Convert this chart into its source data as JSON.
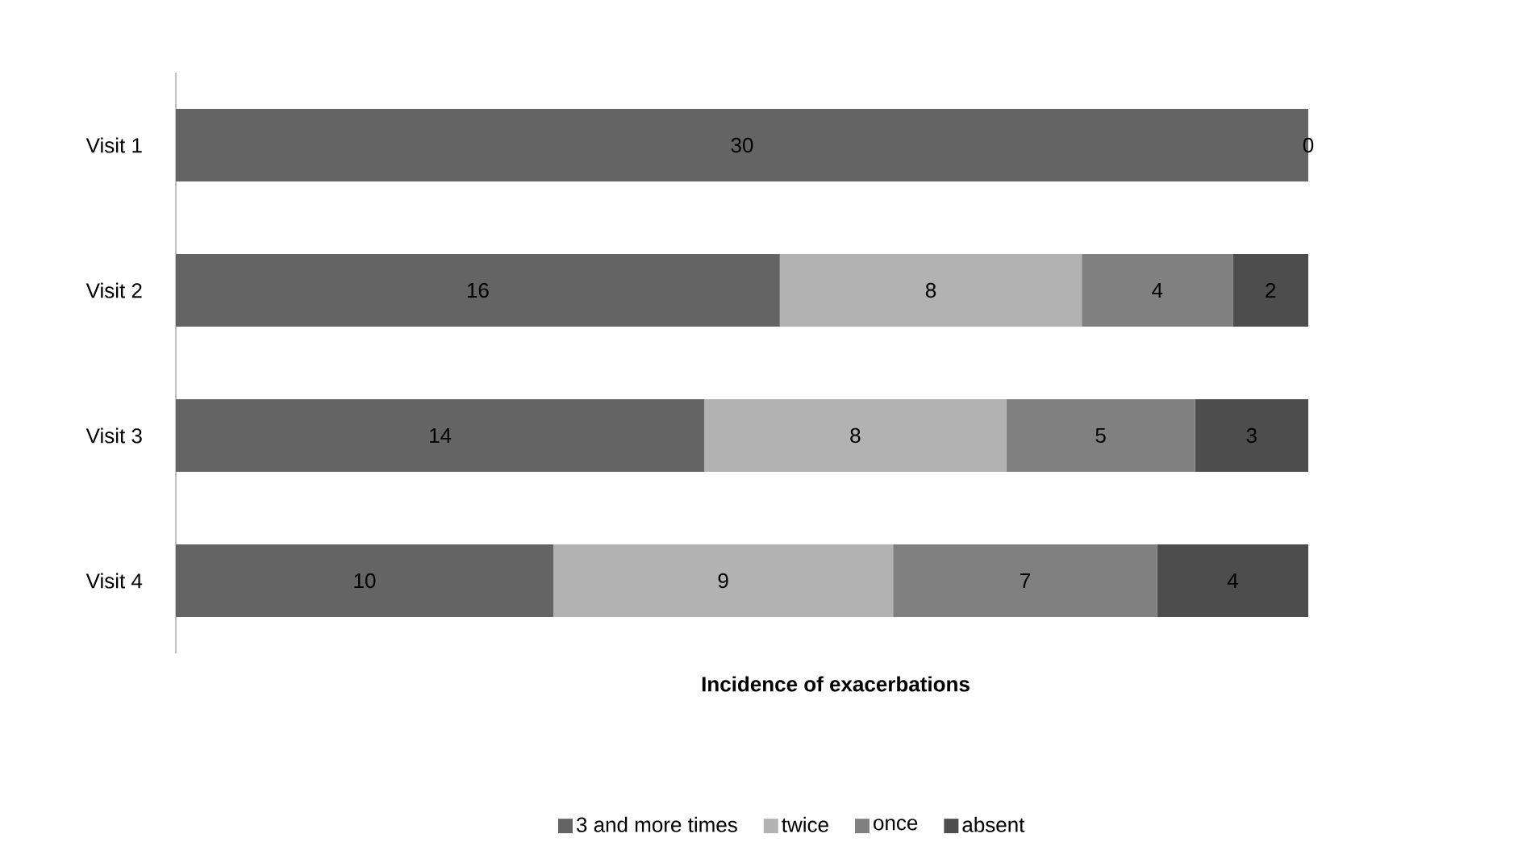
{
  "chart_data": {
    "type": "bar",
    "orientation": "horizontal",
    "stacked": true,
    "xlabel": "Incidence of exacerbations",
    "categories": [
      "Visit 1",
      "Visit 2",
      "Visit 3",
      "Visit 4"
    ],
    "series": [
      {
        "name": "3 and more times",
        "color": "#646464",
        "values": [
          30,
          16,
          14,
          10
        ],
        "value_labels": [
          "30",
          "16",
          "14",
          "10"
        ]
      },
      {
        "name": "twice",
        "color": "#b2b2b2",
        "values": [
          null,
          8,
          8,
          9
        ],
        "value_labels": [
          null,
          "8",
          "8",
          "9"
        ]
      },
      {
        "name": "once",
        "color": "#808080",
        "values": [
          null,
          4,
          5,
          7
        ],
        "value_labels": [
          null,
          "4",
          "5",
          "7"
        ]
      },
      {
        "name": "absent",
        "color": "#4d4d4d",
        "values": [
          0,
          2,
          3,
          4
        ],
        "value_labels": [
          "0",
          "2",
          "3",
          "4"
        ]
      }
    ],
    "legend": "bottom",
    "grid": false
  }
}
